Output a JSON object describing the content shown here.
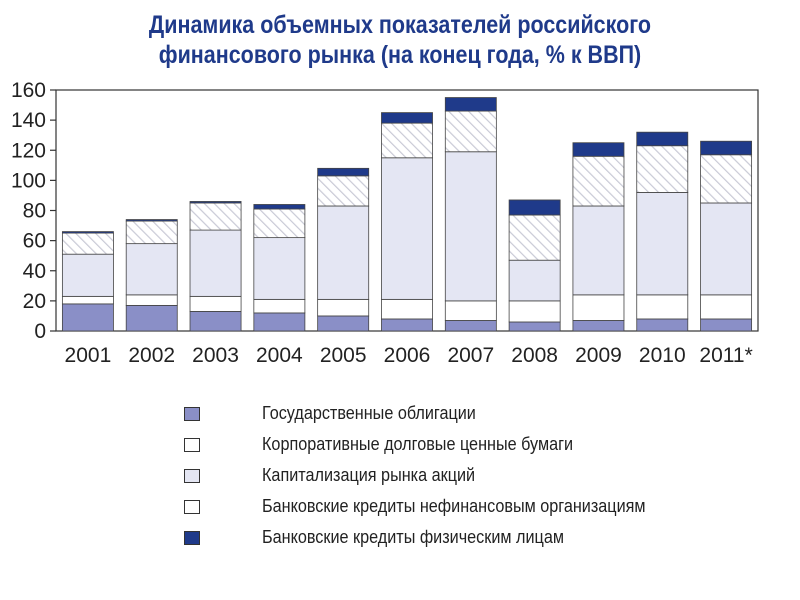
{
  "chart_data": {
    "type": "bar",
    "stacked": true,
    "title_lines": [
      "Динамика объемных показателей российского",
      "финансового рынка (на конец года, % к ВВП)"
    ],
    "categories": [
      "2001",
      "2002",
      "2003",
      "2004",
      "2005",
      "2006",
      "2007",
      "2008",
      "2009",
      "2010",
      "2011*"
    ],
    "ylim": [
      0,
      160
    ],
    "yticks": [
      0,
      20,
      40,
      60,
      80,
      100,
      120,
      140,
      160
    ],
    "grid": false,
    "legend_position": "bottom",
    "series": [
      {
        "name": "Государственные облигации",
        "color": "#8a8fc7",
        "values": [
          18,
          17,
          13,
          12,
          10,
          8,
          7,
          6,
          7,
          8,
          8
        ]
      },
      {
        "name": "Корпоративные долговые ценные бумаги",
        "color": "#ffffff",
        "values": [
          5,
          7,
          10,
          9,
          11,
          13,
          13,
          14,
          17,
          16,
          16
        ]
      },
      {
        "name": "Капитализация рынка акций",
        "color": "#e4e6f3",
        "values": [
          28,
          34,
          44,
          41,
          62,
          94,
          99,
          27,
          59,
          68,
          61
        ]
      },
      {
        "name": "Банковские кредиты нефинансовым организациям",
        "color": "hatch",
        "values": [
          14,
          15,
          18,
          19,
          20,
          23,
          27,
          30,
          33,
          31,
          32
        ]
      },
      {
        "name": "Банковские кредиты физическим лицам",
        "color": "#1f3a8a",
        "values": [
          1,
          1,
          1,
          3,
          5,
          7,
          9,
          10,
          9,
          9,
          9
        ]
      }
    ]
  }
}
